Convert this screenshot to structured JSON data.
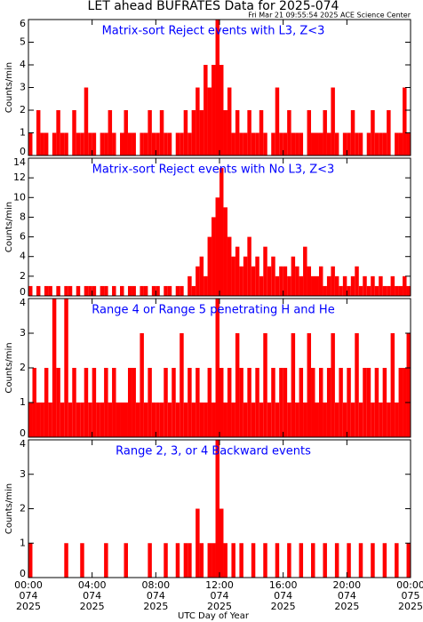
{
  "title": "LET ahead BUFRATES Data for 2025-074",
  "subtitle": "Fri Mar 21 09:55:54 2025 ACE Science Center",
  "chart_data": [
    {
      "type": "histogram",
      "title": "Matrix-sort Reject events with L3, Z<3",
      "ylabel": "Counts/min",
      "color": "#ff0000",
      "xlim": [
        0,
        24
      ],
      "xticks": [
        0,
        4,
        8,
        12,
        16,
        20,
        24
      ],
      "ylim": [
        0,
        6
      ],
      "yticks": [
        0,
        1,
        2,
        3,
        4,
        5,
        6
      ],
      "bins": [
        0,
        0.25,
        0.5,
        0.75,
        1,
        1.25,
        1.5,
        1.75,
        2,
        2.25,
        2.5,
        2.75,
        3,
        3.25,
        3.5,
        3.75,
        4,
        4.25,
        4.5,
        4.75,
        5,
        5.25,
        5.5,
        5.75,
        6,
        6.25,
        6.5,
        6.75,
        7,
        7.25,
        7.5,
        7.75,
        8,
        8.25,
        8.5,
        8.75,
        9,
        9.25,
        9.5,
        9.75,
        10,
        10.25,
        10.5,
        10.75,
        11,
        11.25,
        11.5,
        11.75,
        12,
        12.25,
        12.5,
        12.75,
        13,
        13.25,
        13.5,
        13.75,
        14,
        14.25,
        14.5,
        14.75,
        15,
        15.25,
        15.5,
        15.75,
        16,
        16.25,
        16.5,
        16.75,
        17,
        17.25,
        17.5,
        17.75,
        18,
        18.25,
        18.5,
        18.75,
        19,
        19.25,
        19.5,
        19.75,
        20,
        20.25,
        20.5,
        20.75,
        21,
        21.25,
        21.5,
        21.75,
        22,
        22.25,
        22.5,
        22.75,
        23,
        23.25,
        23.5,
        23.75,
        24
      ],
      "values": [
        1,
        0,
        2,
        1,
        1,
        0,
        1,
        2,
        1,
        1,
        0,
        2,
        1,
        1,
        3,
        1,
        1,
        0,
        1,
        1,
        2,
        1,
        0,
        1,
        2,
        1,
        1,
        0,
        1,
        1,
        2,
        1,
        1,
        2,
        1,
        1,
        0,
        1,
        1,
        2,
        1,
        2,
        3,
        2,
        4,
        3,
        4,
        6,
        4,
        2,
        3,
        1,
        2,
        1,
        1,
        2,
        1,
        1,
        2,
        1,
        0,
        1,
        3,
        1,
        1,
        2,
        1,
        1,
        1,
        0,
        2,
        1,
        1,
        1,
        2,
        1,
        3,
        1,
        0,
        1,
        1,
        2,
        1,
        1,
        0,
        1,
        2,
        1,
        1,
        1,
        2,
        0,
        1,
        1,
        3,
        1
      ]
    },
    {
      "type": "histogram",
      "title": "Matrix-sort Reject events with No L3, Z<3",
      "ylabel": "Counts/min",
      "color": "#ff0000",
      "xlim": [
        0,
        24
      ],
      "xticks": [
        0,
        4,
        8,
        12,
        16,
        20,
        24
      ],
      "ylim": [
        0,
        14
      ],
      "yticks": [
        0,
        2,
        4,
        6,
        8,
        10,
        12,
        14
      ],
      "bins": [
        0,
        0.25,
        0.5,
        0.75,
        1,
        1.25,
        1.5,
        1.75,
        2,
        2.25,
        2.5,
        2.75,
        3,
        3.25,
        3.5,
        3.75,
        4,
        4.25,
        4.5,
        4.75,
        5,
        5.25,
        5.5,
        5.75,
        6,
        6.25,
        6.5,
        6.75,
        7,
        7.25,
        7.5,
        7.75,
        8,
        8.25,
        8.5,
        8.75,
        9,
        9.25,
        9.5,
        9.75,
        10,
        10.25,
        10.5,
        10.75,
        11,
        11.25,
        11.5,
        11.75,
        12,
        12.25,
        12.5,
        12.75,
        13,
        13.25,
        13.5,
        13.75,
        14,
        14.25,
        14.5,
        14.75,
        15,
        15.25,
        15.5,
        15.75,
        16,
        16.25,
        16.5,
        16.75,
        17,
        17.25,
        17.5,
        17.75,
        18,
        18.25,
        18.5,
        18.75,
        19,
        19.25,
        19.5,
        19.75,
        20,
        20.25,
        20.5,
        20.75,
        21,
        21.25,
        21.5,
        21.75,
        22,
        22.25,
        22.5,
        22.75,
        23,
        23.25,
        23.5,
        23.75,
        24
      ],
      "values": [
        1,
        0,
        1,
        0,
        1,
        1,
        0,
        1,
        0,
        1,
        1,
        0,
        1,
        0,
        1,
        1,
        1,
        0,
        1,
        1,
        0,
        1,
        0,
        1,
        0,
        1,
        1,
        0,
        1,
        1,
        0,
        1,
        1,
        0,
        1,
        1,
        0,
        1,
        1,
        0,
        2,
        1,
        3,
        4,
        2,
        6,
        8,
        10,
        13,
        9,
        6,
        4,
        5,
        3,
        4,
        6,
        3,
        4,
        2,
        5,
        3,
        4,
        2,
        3,
        3,
        2,
        4,
        3,
        2,
        5,
        3,
        2,
        2,
        3,
        1,
        2,
        3,
        2,
        1,
        2,
        1,
        2,
        3,
        1,
        2,
        1,
        2,
        1,
        2,
        1,
        1,
        2,
        1,
        1,
        2,
        1
      ]
    },
    {
      "type": "histogram",
      "title": "Range 4 or Range 5 penetrating H and He",
      "ylabel": "Counts/min",
      "color": "#ff0000",
      "xlim": [
        0,
        24
      ],
      "xticks": [
        0,
        4,
        8,
        12,
        16,
        20,
        24
      ],
      "ylim": [
        0,
        4
      ],
      "yticks": [
        0,
        1,
        2,
        3,
        4
      ],
      "bins": [
        0,
        0.25,
        0.5,
        0.75,
        1,
        1.25,
        1.5,
        1.75,
        2,
        2.25,
        2.5,
        2.75,
        3,
        3.25,
        3.5,
        3.75,
        4,
        4.25,
        4.5,
        4.75,
        5,
        5.25,
        5.5,
        5.75,
        6,
        6.25,
        6.5,
        6.75,
        7,
        7.25,
        7.5,
        7.75,
        8,
        8.25,
        8.5,
        8.75,
        9,
        9.25,
        9.5,
        9.75,
        10,
        10.25,
        10.5,
        10.75,
        11,
        11.25,
        11.5,
        11.75,
        12,
        12.25,
        12.5,
        12.75,
        13,
        13.25,
        13.5,
        13.75,
        14,
        14.25,
        14.5,
        14.75,
        15,
        15.25,
        15.5,
        15.75,
        16,
        16.25,
        16.5,
        16.75,
        17,
        17.25,
        17.5,
        17.75,
        18,
        18.25,
        18.5,
        18.75,
        19,
        19.25,
        19.5,
        19.75,
        20,
        20.25,
        20.5,
        20.75,
        21,
        21.25,
        21.5,
        21.75,
        22,
        22.25,
        22.5,
        22.75,
        23,
        23.25,
        23.5,
        23.75,
        24
      ],
      "values": [
        1,
        2,
        1,
        1,
        2,
        1,
        4,
        2,
        1,
        4,
        1,
        2,
        1,
        1,
        2,
        1,
        2,
        1,
        1,
        2,
        1,
        2,
        1,
        1,
        1,
        2,
        2,
        1,
        3,
        1,
        2,
        1,
        1,
        1,
        2,
        1,
        2,
        1,
        3,
        1,
        2,
        1,
        2,
        1,
        1,
        2,
        1,
        4,
        2,
        1,
        2,
        1,
        3,
        2,
        1,
        2,
        1,
        2,
        1,
        3,
        1,
        2,
        1,
        2,
        2,
        1,
        3,
        1,
        2,
        1,
        3,
        2,
        1,
        2,
        1,
        2,
        3,
        1,
        2,
        1,
        2,
        1,
        3,
        1,
        2,
        2,
        1,
        2,
        1,
        2,
        1,
        3,
        1,
        2,
        2,
        3
      ]
    },
    {
      "type": "histogram",
      "title": "Range 2, 3, or 4 Backward events",
      "ylabel": "Counts/min",
      "color": "#ff0000",
      "xlabel": "UTC Day of Year",
      "xlim": [
        0,
        24
      ],
      "xticks": [
        {
          "value": 0,
          "label": [
            "00:00",
            "074",
            "2025"
          ]
        },
        {
          "value": 4,
          "label": [
            "04:00",
            "074",
            "2025"
          ]
        },
        {
          "value": 8,
          "label": [
            "08:00",
            "074",
            "2025"
          ]
        },
        {
          "value": 12,
          "label": [
            "12:00",
            "074",
            "2025"
          ]
        },
        {
          "value": 16,
          "label": [
            "16:00",
            "074",
            "2025"
          ]
        },
        {
          "value": 20,
          "label": [
            "20:00",
            "074",
            "2025"
          ]
        },
        {
          "value": 24,
          "label": [
            "00:00",
            "075",
            "2025"
          ]
        }
      ],
      "ylim": [
        0,
        4
      ],
      "yticks": [
        0,
        1,
        2,
        3,
        4
      ],
      "bins": [
        0,
        0.25,
        0.5,
        0.75,
        1,
        1.25,
        1.5,
        1.75,
        2,
        2.25,
        2.5,
        2.75,
        3,
        3.25,
        3.5,
        3.75,
        4,
        4.25,
        4.5,
        4.75,
        5,
        5.25,
        5.5,
        5.75,
        6,
        6.25,
        6.5,
        6.75,
        7,
        7.25,
        7.5,
        7.75,
        8,
        8.25,
        8.5,
        8.75,
        9,
        9.25,
        9.5,
        9.75,
        10,
        10.25,
        10.5,
        10.75,
        11,
        11.25,
        11.5,
        11.75,
        12,
        12.25,
        12.5,
        12.75,
        13,
        13.25,
        13.5,
        13.75,
        14,
        14.25,
        14.5,
        14.75,
        15,
        15.25,
        15.5,
        15.75,
        16,
        16.25,
        16.5,
        16.75,
        17,
        17.25,
        17.5,
        17.75,
        18,
        18.25,
        18.5,
        18.75,
        19,
        19.25,
        19.5,
        19.75,
        20,
        20.25,
        20.5,
        20.75,
        21,
        21.25,
        21.5,
        21.75,
        22,
        22.25,
        22.5,
        22.75,
        23,
        23.25,
        23.5,
        23.75,
        24
      ],
      "values": [
        1,
        0,
        0,
        0,
        0,
        0,
        0,
        0,
        0,
        1,
        0,
        0,
        0,
        1,
        0,
        0,
        0,
        0,
        0,
        1,
        0,
        0,
        0,
        0,
        1,
        0,
        0,
        0,
        0,
        0,
        1,
        0,
        0,
        0,
        1,
        0,
        0,
        1,
        0,
        1,
        1,
        0,
        2,
        1,
        0,
        1,
        1,
        4,
        2,
        1,
        0,
        1,
        0,
        1,
        0,
        0,
        1,
        0,
        0,
        1,
        0,
        0,
        1,
        0,
        0,
        1,
        0,
        0,
        1,
        0,
        0,
        1,
        0,
        0,
        1,
        0,
        0,
        1,
        0,
        0,
        1,
        0,
        0,
        1,
        0,
        0,
        1,
        0,
        0,
        1,
        0,
        0,
        1,
        0,
        0,
        1
      ]
    }
  ]
}
